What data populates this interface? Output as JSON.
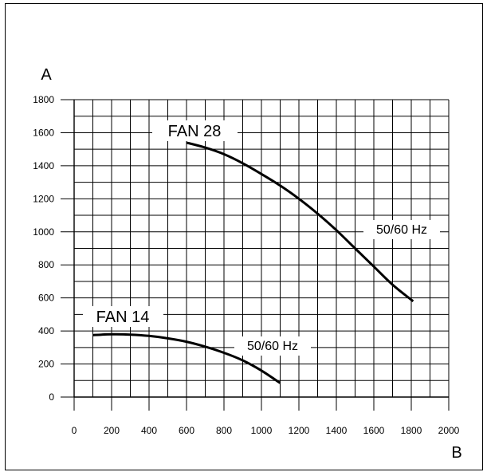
{
  "chart_data": {
    "type": "line",
    "xlabel": "B",
    "ylabel": "A",
    "xlim": [
      0,
      2000
    ],
    "ylim": [
      0,
      1800
    ],
    "x_ticks": [
      "0",
      "200",
      "400",
      "600",
      "800",
      "1000",
      "1200",
      "1400",
      "1600",
      "1800",
      "2000"
    ],
    "y_ticks": [
      "0",
      "200",
      "400",
      "600",
      "800",
      "1000",
      "1200",
      "1400",
      "1600",
      "1800"
    ],
    "grid": true,
    "series": [
      {
        "name": "FAN 28",
        "annotation": "50/60 Hz",
        "x": [
          600,
          700,
          800,
          900,
          1000,
          1100,
          1200,
          1300,
          1400,
          1500,
          1600,
          1700,
          1810
        ],
        "y": [
          1540,
          1510,
          1470,
          1415,
          1350,
          1280,
          1200,
          1110,
          1010,
          900,
          790,
          680,
          580
        ]
      },
      {
        "name": "FAN 14",
        "annotation": "50/60 Hz",
        "x": [
          100,
          200,
          300,
          400,
          500,
          600,
          700,
          800,
          900,
          1000,
          1100
        ],
        "y": [
          375,
          380,
          378,
          370,
          355,
          335,
          305,
          268,
          222,
          160,
          85
        ]
      }
    ]
  }
}
